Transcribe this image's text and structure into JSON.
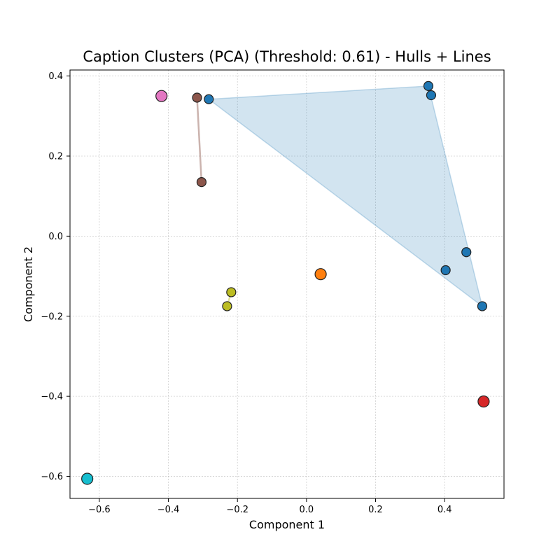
{
  "chart_data": {
    "type": "scatter",
    "title": "Caption Clusters (PCA) (Threshold: 0.61) - Hulls + Lines",
    "xlabel": "Component 1",
    "ylabel": "Component 2",
    "xlim": [
      -0.685,
      0.572
    ],
    "ylim": [
      -0.655,
      0.415
    ],
    "xticks": [
      -0.6,
      -0.4,
      -0.2,
      0.0,
      0.2,
      0.4
    ],
    "yticks": [
      -0.6,
      -0.4,
      -0.2,
      0.0,
      0.2,
      0.4
    ],
    "xtick_labels": [
      "−0.6",
      "−0.4",
      "−0.2",
      "0.0",
      "0.2",
      "0.4"
    ],
    "ytick_labels": [
      "−0.6",
      "−0.4",
      "−0.2",
      "0.0",
      "0.2",
      "0.4"
    ],
    "grid": true,
    "series": [
      {
        "color": "#1f77b4",
        "shape": "hull",
        "points": [
          [
            -0.283,
            0.342
          ],
          [
            0.353,
            0.375
          ],
          [
            0.361,
            0.352
          ],
          [
            0.463,
            -0.04
          ],
          [
            0.403,
            -0.085
          ],
          [
            0.509,
            -0.175
          ]
        ],
        "hull": [
          [
            -0.283,
            0.342
          ],
          [
            0.353,
            0.375
          ],
          [
            0.509,
            -0.175
          ]
        ]
      },
      {
        "color": "#8c564b",
        "shape": "line",
        "points": [
          [
            -0.317,
            0.346
          ],
          [
            -0.304,
            0.135
          ]
        ]
      },
      {
        "color": "#bcbd22",
        "shape": "line",
        "points": [
          [
            -0.218,
            -0.14
          ],
          [
            -0.23,
            -0.175
          ]
        ]
      },
      {
        "color": "#e377c2",
        "shape": "single",
        "points": [
          [
            -0.42,
            0.35
          ]
        ]
      },
      {
        "color": "#ff7f0e",
        "shape": "single",
        "points": [
          [
            0.041,
            -0.095
          ]
        ]
      },
      {
        "color": "#d62728",
        "shape": "single",
        "points": [
          [
            0.513,
            -0.413
          ]
        ]
      },
      {
        "color": "#17becf",
        "shape": "single",
        "points": [
          [
            -0.635,
            -0.606
          ]
        ]
      }
    ]
  }
}
